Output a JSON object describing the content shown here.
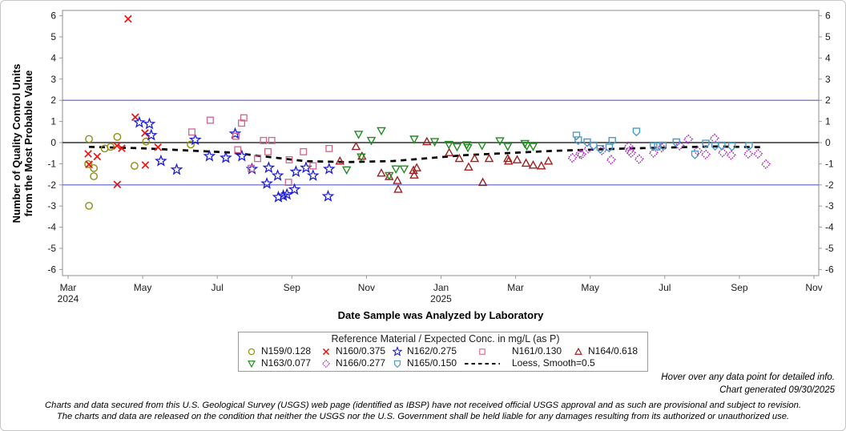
{
  "figure": {
    "hover_note": "Hover over any data point for detailed info.",
    "generated_note": "Chart generated 09/30/2025",
    "disclaimer_line1": "Charts and data secured from this U.S. Geological Survey (USGS) web page (identified as IBSP) have not received official USGS approval and as such are provisional and subject to revision.",
    "disclaimer_line2": "The charts and data are released on the condition that neither the USGS nor the U.S. Government shall be held liable for any damages resulting from its authorized or unauthorized use."
  },
  "chart_data": {
    "type": "scatter",
    "xlabel": "Date Sample was Analyzed by Laboratory",
    "ylabel_line1": "Number of Quality Control Units",
    "ylabel_line2": "from the Most Probable Value",
    "legend_title": "Reference Material / Expected Conc. in mg/L (as P)",
    "x_axis": {
      "unit": "months since Mar 2024",
      "min": 0,
      "max": 20,
      "ticks": [
        {
          "m": 0,
          "label": "Mar",
          "year": "2024"
        },
        {
          "m": 2,
          "label": "May"
        },
        {
          "m": 4,
          "label": "Jul"
        },
        {
          "m": 6,
          "label": "Sep"
        },
        {
          "m": 8,
          "label": "Nov"
        },
        {
          "m": 10,
          "label": "Jan",
          "year": "2025"
        },
        {
          "m": 12,
          "label": "Mar"
        },
        {
          "m": 14,
          "label": "May"
        },
        {
          "m": 16,
          "label": "Jul"
        },
        {
          "m": 18,
          "label": "Sep"
        },
        {
          "m": 20,
          "label": "Nov"
        }
      ]
    },
    "y_axis": {
      "min": -6,
      "max": 6,
      "ticks": [
        6,
        5,
        4,
        3,
        2,
        1,
        0,
        -1,
        -2,
        -3,
        -4,
        -5,
        -6
      ]
    },
    "reference_lines": [
      {
        "y": 2,
        "color": "#5b5bc4"
      },
      {
        "y": 0,
        "color": "#4d4d4d"
      },
      {
        "y": -2,
        "color": "#5b5bc4"
      }
    ],
    "legend_rows": [
      [
        "N159",
        "N160",
        "N162",
        "N161",
        "N164"
      ],
      [
        "N163",
        "N166",
        "N165",
        "LOESS",
        ""
      ]
    ],
    "series": [
      {
        "id": "N159",
        "label": "N159/0.128",
        "marker": "circle",
        "color": "#8f8f10",
        "points": [
          [
            0.54,
            -1.02
          ],
          [
            0.56,
            0.17
          ],
          [
            0.56,
            -2.99
          ],
          [
            0.69,
            -1.21
          ],
          [
            0.69,
            -1.59
          ],
          [
            0.98,
            -0.28
          ],
          [
            1.14,
            -0.2
          ],
          [
            1.32,
            0.27
          ],
          [
            1.78,
            -1.1
          ],
          [
            2.09,
            0.05
          ],
          [
            3.29,
            -0.09
          ]
        ]
      },
      {
        "id": "N160",
        "label": "N160/0.375",
        "marker": "x",
        "color": "#ee1111",
        "points": [
          [
            0.54,
            -0.53
          ],
          [
            0.56,
            -1.03
          ],
          [
            0.78,
            -0.66
          ],
          [
            1.31,
            -0.15
          ],
          [
            1.32,
            -1.98
          ],
          [
            1.44,
            -0.27
          ],
          [
            1.61,
            5.85
          ],
          [
            1.8,
            1.2
          ],
          [
            2.06,
            0.45
          ],
          [
            2.07,
            -1.06
          ],
          [
            2.41,
            -0.22
          ]
        ]
      },
      {
        "id": "N162",
        "label": "N162/0.275",
        "marker": "star",
        "color": "#1c1cd6",
        "points": [
          [
            1.91,
            0.95
          ],
          [
            2.18,
            0.88
          ],
          [
            2.23,
            0.35
          ],
          [
            2.49,
            -0.87
          ],
          [
            2.91,
            -1.28
          ],
          [
            3.41,
            0.13
          ],
          [
            3.79,
            -0.64
          ],
          [
            4.23,
            -0.72
          ],
          [
            4.48,
            0.42
          ],
          [
            4.66,
            -0.64
          ],
          [
            4.93,
            -1.25
          ],
          [
            5.33,
            -1.94
          ],
          [
            5.38,
            -1.19
          ],
          [
            5.62,
            -1.56
          ],
          [
            5.64,
            -2.58
          ],
          [
            5.77,
            -2.51
          ],
          [
            5.87,
            -2.45
          ],
          [
            6.07,
            -2.22
          ],
          [
            6.11,
            -1.38
          ],
          [
            6.38,
            -1.19
          ],
          [
            6.57,
            -1.56
          ],
          [
            6.97,
            -2.54
          ],
          [
            7.0,
            -1.25
          ]
        ]
      },
      {
        "id": "N161",
        "label": "N161/0.130",
        "marker": "square",
        "color": "#d4638f",
        "points": [
          [
            3.32,
            0.5
          ],
          [
            3.81,
            1.06
          ],
          [
            4.5,
            0.3
          ],
          [
            4.55,
            -0.34
          ],
          [
            4.65,
            0.92
          ],
          [
            4.71,
            1.17
          ],
          [
            4.91,
            -1.22
          ],
          [
            5.08,
            -0.75
          ],
          [
            5.24,
            0.1
          ],
          [
            5.36,
            -0.43
          ],
          [
            5.46,
            0.1
          ],
          [
            5.91,
            -1.88
          ],
          [
            5.93,
            -0.81
          ],
          [
            6.31,
            -0.43
          ],
          [
            6.57,
            -1.1
          ],
          [
            7.0,
            -0.28
          ]
        ]
      },
      {
        "id": "N164",
        "label": "N164/0.618",
        "marker": "triangle-up",
        "color": "#9e1f1f",
        "points": [
          [
            7.29,
            -0.87
          ],
          [
            7.72,
            -0.18
          ],
          [
            7.88,
            -0.64
          ],
          [
            8.4,
            -1.44
          ],
          [
            8.61,
            -1.6
          ],
          [
            8.83,
            -1.79
          ],
          [
            8.85,
            -2.2
          ],
          [
            9.26,
            -1.31
          ],
          [
            9.28,
            -1.53
          ],
          [
            9.35,
            -1.19
          ],
          [
            9.62,
            0.05
          ],
          [
            10.22,
            -0.47
          ],
          [
            10.49,
            -0.75
          ],
          [
            10.74,
            -1.15
          ],
          [
            10.9,
            -0.75
          ],
          [
            11.12,
            -1.88
          ],
          [
            11.29,
            -0.75
          ],
          [
            11.79,
            -0.75
          ],
          [
            11.81,
            -0.87
          ],
          [
            12.04,
            -0.81
          ],
          [
            12.28,
            -0.97
          ],
          [
            12.47,
            -1.06
          ],
          [
            12.69,
            -1.1
          ],
          [
            12.88,
            -0.87
          ]
        ]
      },
      {
        "id": "N163",
        "label": "N163/0.077",
        "marker": "triangle-down",
        "color": "#1f8c1f",
        "points": [
          [
            7.47,
            -1.29
          ],
          [
            7.79,
            0.39
          ],
          [
            7.86,
            -0.68
          ],
          [
            8.13,
            0.1
          ],
          [
            8.4,
            0.56
          ],
          [
            8.61,
            -1.56
          ],
          [
            8.79,
            -1.25
          ],
          [
            9.01,
            -1.25
          ],
          [
            9.28,
            0.16
          ],
          [
            9.83,
            0.04
          ],
          [
            10.21,
            -0.09
          ],
          [
            10.43,
            -0.2
          ],
          [
            10.69,
            -0.11
          ],
          [
            10.72,
            -0.24
          ],
          [
            11.1,
            -0.14
          ],
          [
            11.58,
            0.08
          ],
          [
            11.79,
            -0.18
          ],
          [
            12.25,
            -0.05
          ],
          [
            12.3,
            -0.16
          ],
          [
            12.47,
            -0.18
          ]
        ]
      },
      {
        "id": "N166",
        "label": "N166/0.277",
        "marker": "diamond",
        "color": "#aa22bb",
        "points": [
          [
            13.52,
            -0.72
          ],
          [
            13.72,
            -0.53
          ],
          [
            13.77,
            -0.56
          ],
          [
            13.95,
            -0.28
          ],
          [
            14.32,
            -0.37
          ],
          [
            14.56,
            -0.81
          ],
          [
            15.03,
            -0.18
          ],
          [
            15.05,
            -0.39
          ],
          [
            15.1,
            -0.49
          ],
          [
            15.31,
            -0.78
          ],
          [
            15.7,
            -0.49
          ],
          [
            15.92,
            -0.24
          ],
          [
            16.4,
            -0.14
          ],
          [
            16.63,
            0.16
          ],
          [
            16.88,
            -0.39
          ],
          [
            17.1,
            -0.56
          ],
          [
            17.33,
            0.2
          ],
          [
            17.55,
            -0.47
          ],
          [
            17.78,
            -0.59
          ],
          [
            18.24,
            -0.53
          ],
          [
            18.5,
            -0.53
          ],
          [
            18.71,
            -1.02
          ]
        ]
      },
      {
        "id": "N165",
        "label": "N165/0.150",
        "marker": "shield",
        "color": "#4c9ac9",
        "points": [
          [
            13.63,
            0.33
          ],
          [
            13.68,
            0.11
          ],
          [
            13.92,
            0.01
          ],
          [
            14.09,
            -0.14
          ],
          [
            14.27,
            -0.3
          ],
          [
            14.51,
            -0.24
          ],
          [
            14.59,
            0.08
          ],
          [
            15.24,
            0.52
          ],
          [
            15.7,
            -0.18
          ],
          [
            15.81,
            -0.18
          ],
          [
            15.95,
            -0.14
          ],
          [
            16.31,
            0.01
          ],
          [
            16.81,
            -0.56
          ],
          [
            17.1,
            -0.05
          ],
          [
            17.35,
            -0.15
          ],
          [
            17.53,
            -0.14
          ],
          [
            17.8,
            -0.18
          ],
          [
            18.26,
            -0.15
          ]
        ]
      }
    ],
    "loess": {
      "label": "Loess, Smooth=0.5",
      "color": "#000000",
      "points": [
        [
          0.56,
          -0.2
        ],
        [
          2.0,
          -0.27
        ],
        [
          4.36,
          -0.47
        ],
        [
          6.36,
          -0.88
        ],
        [
          7.5,
          -0.92
        ],
        [
          8.72,
          -0.87
        ],
        [
          10.66,
          -0.59
        ],
        [
          13.02,
          -0.39
        ],
        [
          14.95,
          -0.28
        ],
        [
          17.31,
          -0.18
        ],
        [
          18.6,
          -0.22
        ]
      ]
    }
  }
}
